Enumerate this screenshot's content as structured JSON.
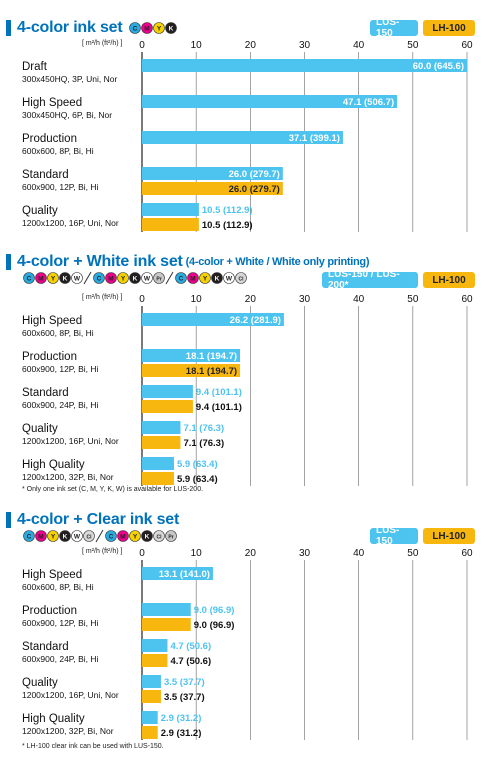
{
  "unit": "[ m²/h (ft²/h) ]",
  "axis_ticks": [
    "0",
    "10",
    "20",
    "30",
    "40",
    "50",
    "60"
  ],
  "icons": {
    "C": "#29abe2",
    "M": "#ec008c",
    "Y": "#f5d100",
    "K": "#231f20",
    "W": "#ffffff",
    "Cl": "#d8d8d8",
    "Pr": "#c8c8c8"
  },
  "sections": [
    {
      "title": "4-color ink set",
      "subtitle": "",
      "legend": [
        "LUS-150",
        "LH-100"
      ],
      "inks": [
        [
          "C",
          "M",
          "Y",
          "K"
        ]
      ],
      "note": "",
      "chart_data": {
        "type": "bar",
        "orientation": "horizontal",
        "xlim": [
          0,
          60
        ],
        "categories": [
          "Draft",
          "High Speed",
          "Production",
          "Standard",
          "Quality"
        ],
        "sublabels": [
          "300x450HQ, 3P, Uni, Nor",
          "300x450HQ, 6P, Bi, Nor",
          "600x600, 8P, Bi, Hi",
          "600x900, 12P, Bi, Hi",
          "1200x1200, 16P, Uni, Nor"
        ],
        "series": [
          {
            "name": "LUS-150",
            "color": "#4dc3f0",
            "values": [
              60.0,
              47.1,
              37.1,
              26.0,
              10.5
            ],
            "labels": [
              "60.0 (645.6)",
              "47.1 (506.7)",
              "37.1 (399.1)",
              "26.0 (279.7)",
              "10.5 (112.9)"
            ]
          },
          {
            "name": "LH-100",
            "color": "#f7b70f",
            "values": [
              null,
              null,
              null,
              26.0,
              10.5
            ],
            "labels": [
              "",
              "",
              "",
              "26.0 (279.7)",
              "10.5 (112.9)"
            ]
          }
        ]
      }
    },
    {
      "title": "4-color + White ink set",
      "subtitle": "(4-color + White / White only printing)",
      "legend": [
        "LUS-150 / LUS-200*",
        "LH-100"
      ],
      "inks": [
        [
          "C",
          "M",
          "Y",
          "K",
          "W"
        ],
        [
          "C",
          "M",
          "Y",
          "K",
          "W",
          "Pr"
        ],
        [
          "C",
          "M",
          "Y",
          "K",
          "W",
          "Cl"
        ]
      ],
      "note": "*  Only one ink set (C, M, Y, K, W) is available for LUS-200.",
      "chart_data": {
        "type": "bar",
        "orientation": "horizontal",
        "xlim": [
          0,
          60
        ],
        "categories": [
          "High Speed",
          "Production",
          "Standard",
          "Quality",
          "High Quality"
        ],
        "sublabels": [
          "600x600, 8P, Bi, Hi",
          "600x900, 12P, Bi, Hi",
          "600x900, 24P, Bi, Hi",
          "1200x1200, 16P, Uni, Nor",
          "1200x1200, 32P, Bi, Nor"
        ],
        "series": [
          {
            "name": "LUS-150 / LUS-200*",
            "color": "#4dc3f0",
            "values": [
              26.2,
              18.1,
              9.4,
              7.1,
              5.9
            ],
            "labels": [
              "26.2 (281.9)",
              "18.1 (194.7)",
              "9.4 (101.1)",
              "7.1 (76.3)",
              "5.9 (63.4)"
            ]
          },
          {
            "name": "LH-100",
            "color": "#f7b70f",
            "values": [
              null,
              18.1,
              9.4,
              7.1,
              5.9
            ],
            "labels": [
              "",
              "18.1 (194.7)",
              "9.4 (101.1)",
              "7.1 (76.3)",
              "5.9 (63.4)"
            ]
          }
        ]
      }
    },
    {
      "title": "4-color + Clear ink set",
      "subtitle": "",
      "legend": [
        "LUS-150",
        "LH-100"
      ],
      "inks": [
        [
          "C",
          "M",
          "Y",
          "K",
          "W",
          "Cl"
        ],
        [
          "C",
          "M",
          "Y",
          "K",
          "Cl",
          "Pr"
        ]
      ],
      "note": "*  LH-100 clear ink can be used with LUS-150.",
      "chart_data": {
        "type": "bar",
        "orientation": "horizontal",
        "xlim": [
          0,
          60
        ],
        "categories": [
          "High Speed",
          "Production",
          "Standard",
          "Quality",
          "High Quality"
        ],
        "sublabels": [
          "600x600, 8P, Bi, Hi",
          "600x900, 12P, Bi, Hi",
          "600x900, 24P, Bi, Hi",
          "1200x1200, 16P, Uni, Nor",
          "1200x1200, 32P, Bi, Nor"
        ],
        "series": [
          {
            "name": "LUS-150",
            "color": "#4dc3f0",
            "values": [
              13.1,
              9.0,
              4.7,
              3.5,
              2.9
            ],
            "labels": [
              "13.1 (141.0)",
              "9.0 (96.9)",
              "4.7 (50.6)",
              "3.5 (37.7)",
              "2.9 (31.2)"
            ]
          },
          {
            "name": "LH-100",
            "color": "#f7b70f",
            "values": [
              null,
              9.0,
              4.7,
              3.5,
              2.9
            ],
            "labels": [
              "",
              "9.0 (96.9)",
              "4.7 (50.6)",
              "3.5 (37.7)",
              "2.9 (31.2)"
            ]
          }
        ]
      }
    }
  ]
}
